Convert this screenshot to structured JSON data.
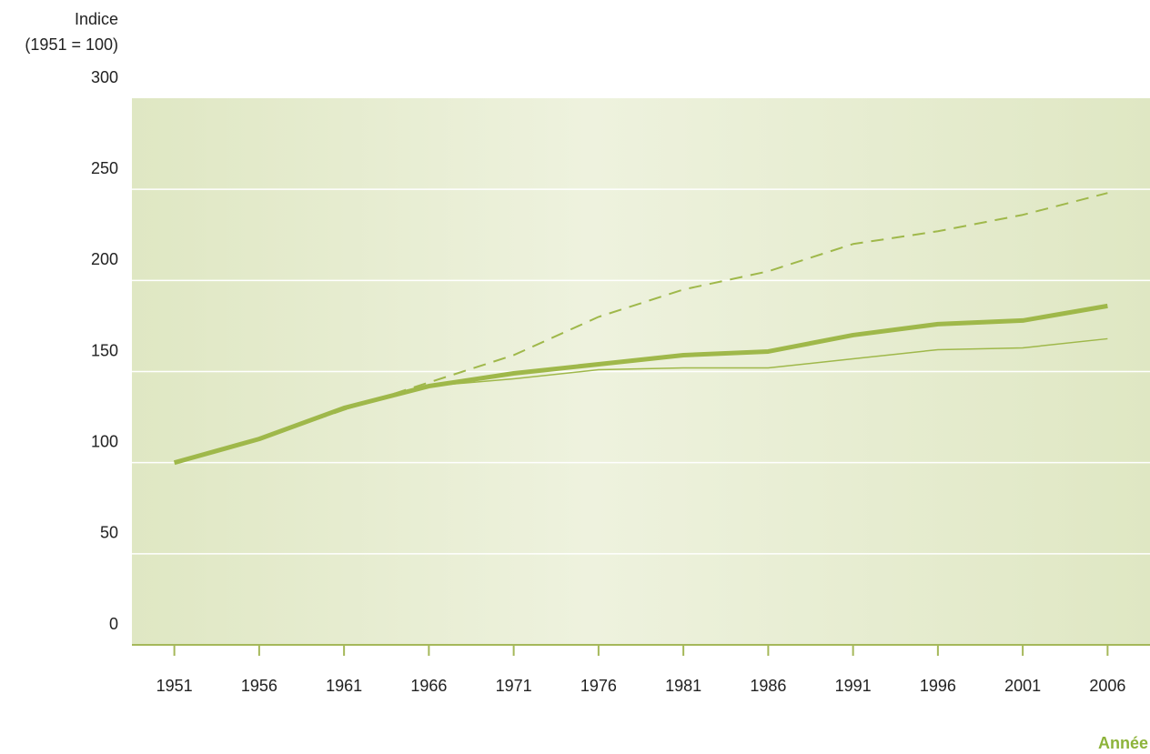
{
  "chart_data": {
    "type": "line",
    "ylabel": [
      "Indice",
      "(1951 = 100)"
    ],
    "xlabel": "Année",
    "categories": [
      "1951",
      "1956",
      "1961",
      "1966",
      "1971",
      "1976",
      "1981",
      "1986",
      "1991",
      "1996",
      "2001",
      "2006"
    ],
    "series": [
      {
        "color": "#9fb84a",
        "style": "dashed",
        "width": 2,
        "values": [
          100,
          113,
          129,
          144,
          159,
          180,
          195,
          205,
          220,
          227,
          236,
          248
        ]
      },
      {
        "color": "#9fb84a",
        "style": "solid",
        "width": 5,
        "values": [
          100,
          113,
          130,
          142,
          149,
          154,
          159,
          161,
          170,
          176,
          178,
          186
        ]
      },
      {
        "color": "#9fb84a",
        "style": "solid",
        "width": 1.5,
        "values": [
          100,
          113,
          129,
          142,
          146,
          151,
          152,
          152,
          157,
          162,
          163,
          168
        ]
      }
    ],
    "ylim": [
      0,
      300
    ],
    "yticks": [
      0,
      50,
      100,
      150,
      200,
      250,
      300
    ],
    "grid": true
  }
}
